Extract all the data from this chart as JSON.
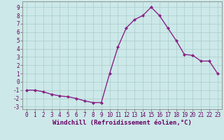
{
  "x": [
    0,
    1,
    2,
    3,
    4,
    5,
    6,
    7,
    8,
    9,
    10,
    11,
    12,
    13,
    14,
    15,
    16,
    17,
    18,
    19,
    20,
    21,
    22,
    23
  ],
  "y": [
    -1.0,
    -1.0,
    -1.2,
    -1.5,
    -1.7,
    -1.8,
    -2.0,
    -2.3,
    -2.5,
    -2.5,
    1.0,
    4.2,
    6.5,
    7.5,
    8.0,
    9.0,
    8.0,
    6.5,
    5.0,
    3.3,
    3.2,
    2.5,
    2.5,
    1.0
  ],
  "line_color": "#882288",
  "marker": "D",
  "marker_size": 2.0,
  "linewidth": 1.0,
  "xlabel": "Windchill (Refroidissement éolien,°C)",
  "xlim": [
    -0.5,
    23.5
  ],
  "ylim": [
    -3.3,
    9.7
  ],
  "xticks": [
    0,
    1,
    2,
    3,
    4,
    5,
    6,
    7,
    8,
    9,
    10,
    11,
    12,
    13,
    14,
    15,
    16,
    17,
    18,
    19,
    20,
    21,
    22,
    23
  ],
  "yticks": [
    -3,
    -2,
    -1,
    0,
    1,
    2,
    3,
    4,
    5,
    6,
    7,
    8,
    9
  ],
  "grid_color": "#aacccc",
  "bg_color": "#cce8e8",
  "tick_label_fontsize": 5.5,
  "xlabel_fontsize": 6.5,
  "label_color": "#660066",
  "spine_color": "#888888"
}
